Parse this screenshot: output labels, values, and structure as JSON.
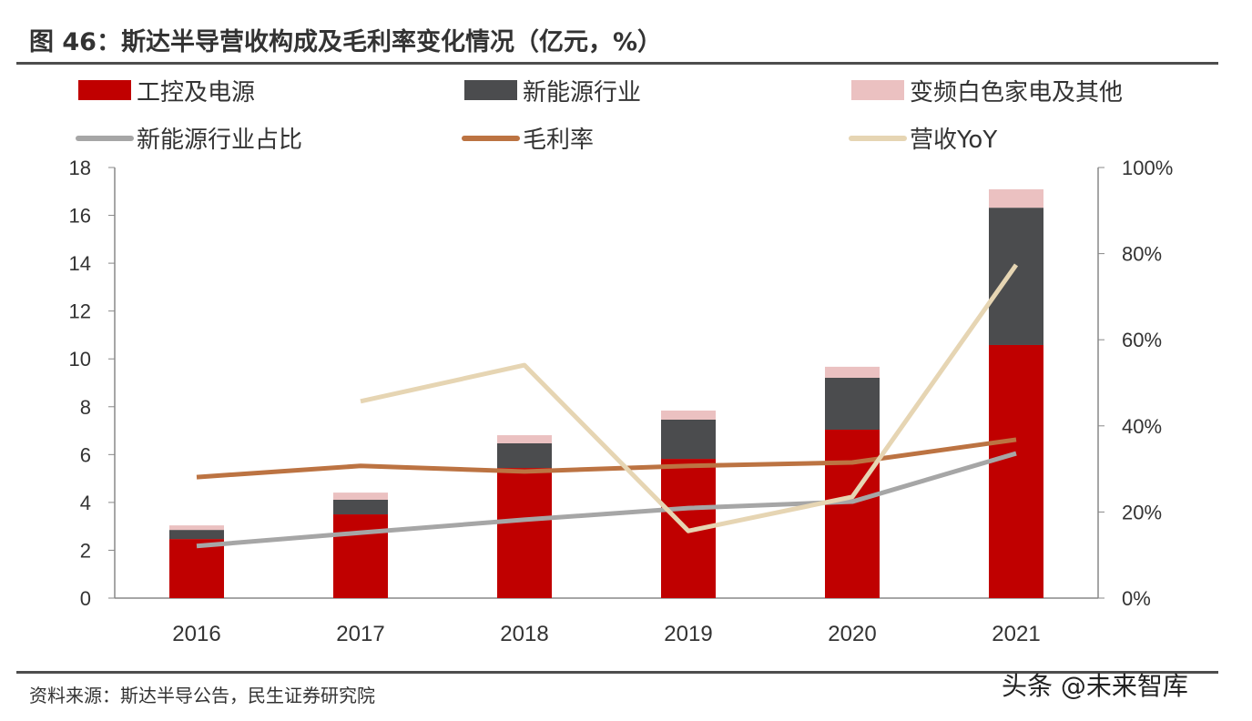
{
  "title": "图 46：斯达半导营收构成及毛利率变化情况（亿元，%）",
  "source": "资料来源：斯达半导公告，民生证券研究院",
  "watermark": "头条 @未来智库",
  "chart_data": {
    "type": "bar",
    "stacked": true,
    "categories": [
      "2016",
      "2017",
      "2018",
      "2019",
      "2020",
      "2021"
    ],
    "ylim": [
      0,
      18
    ],
    "y_ticks": [
      "0",
      "2",
      "4",
      "6",
      "8",
      "10",
      "12",
      "14",
      "16",
      "18"
    ],
    "y2lim": [
      0,
      100
    ],
    "y2_ticks": [
      "0%",
      "20%",
      "40%",
      "60%",
      "80%",
      "100%"
    ],
    "grid": false,
    "legend_position": "top",
    "series": [
      {
        "name": "工控及电源",
        "kind": "bar",
        "axis": "left",
        "color": "#c00000",
        "values": [
          2.47,
          3.5,
          5.44,
          5.82,
          7.04,
          10.58
        ]
      },
      {
        "name": "新能源行业",
        "kind": "bar",
        "axis": "left",
        "color": "#4b4c4e",
        "values": [
          0.38,
          0.61,
          1.03,
          1.64,
          2.17,
          5.74
        ]
      },
      {
        "name": "变频白色家电及其他",
        "kind": "bar",
        "axis": "left",
        "color": "#ebc1c1",
        "values": [
          0.19,
          0.3,
          0.34,
          0.38,
          0.46,
          0.77
        ]
      },
      {
        "name": "新能源行业占比",
        "kind": "line",
        "axis": "right",
        "color": "#a6a6a6",
        "values": [
          12.1,
          15.2,
          18.2,
          20.9,
          22.4,
          33.6
        ]
      },
      {
        "name": "毛利率",
        "kind": "line",
        "axis": "right",
        "color": "#bc7342",
        "values": [
          28.1,
          30.7,
          29.4,
          30.7,
          31.5,
          36.8
        ]
      },
      {
        "name": "营收YoY",
        "kind": "line",
        "axis": "right",
        "color": "#e6d5b3",
        "values": [
          null,
          45.7,
          54.1,
          15.6,
          23.5,
          77.4
        ]
      }
    ]
  }
}
